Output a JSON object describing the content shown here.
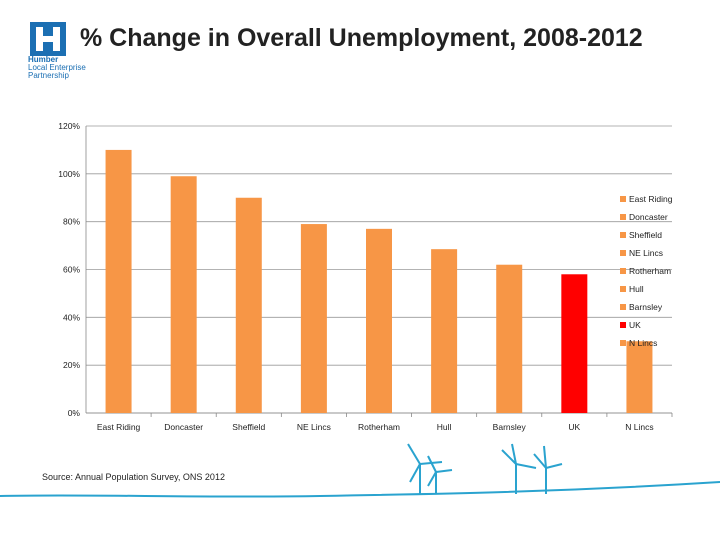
{
  "logo": {
    "line1": "Humber",
    "line2": "Local Enterprise",
    "line3": "Partnership",
    "color": "#1b6fb3"
  },
  "title": "% Change in Overall Unemployment, 2008-2012",
  "source": "Source: Annual Population Survey, ONS 2012",
  "chart_data": {
    "type": "bar",
    "categories": [
      "East Riding",
      "Doncaster",
      "Sheffield",
      "NE Lincs",
      "Rotherham",
      "Hull",
      "Barnsley",
      "UK",
      "N Lincs"
    ],
    "values": [
      110,
      99,
      90,
      79,
      77,
      68.5,
      62,
      58,
      30
    ],
    "colors": [
      "#f79646",
      "#f79646",
      "#f79646",
      "#f79646",
      "#f79646",
      "#f79646",
      "#f79646",
      "#ff0000",
      "#f79646"
    ],
    "y_ticks": [
      0,
      20,
      40,
      60,
      80,
      100,
      120
    ],
    "y_tick_labels": [
      "0%",
      "20%",
      "40%",
      "60%",
      "80%",
      "100%",
      "120%"
    ],
    "ylim": [
      0,
      120
    ],
    "grid": true,
    "legend_position": "right",
    "legend": [
      "East Riding",
      "Doncaster",
      "Sheffield",
      "NE Lincs",
      "Rotherham",
      "Hull",
      "Barnsley",
      "UK",
      "N Lincs"
    ]
  }
}
